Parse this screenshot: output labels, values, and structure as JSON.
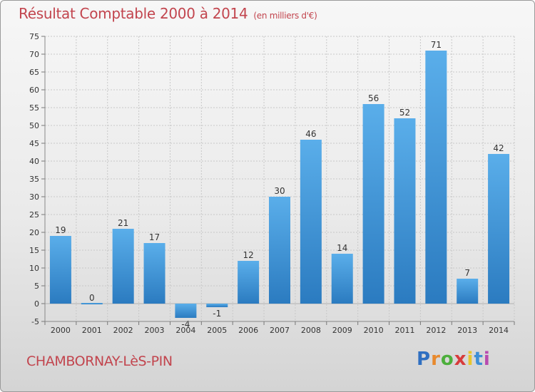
{
  "title": "Résultat Comptable 2000 à 2014",
  "subtitle": "(en milliers d'€)",
  "commune": "CHAMBORNAY-LèS-PIN",
  "logo": {
    "p": "P",
    "r": "r",
    "o": "o",
    "x": "x",
    "i1": "i",
    "t": "t",
    "i2": "i"
  },
  "colors": {
    "title": "#c2454e",
    "bar_top": "#5aaeea",
    "bar_bottom": "#2b7bc0",
    "grid": "#c8c8c8"
  },
  "chart_data": {
    "type": "bar",
    "title": "Résultat Comptable 2000 à 2014",
    "ylabel": "en milliers d'€",
    "xlabel": "",
    "categories": [
      "2000",
      "2001",
      "2002",
      "2003",
      "2004",
      "2005",
      "2006",
      "2007",
      "2008",
      "2009",
      "2010",
      "2011",
      "2012",
      "2013",
      "2014"
    ],
    "values": [
      19,
      0,
      21,
      17,
      -4,
      -1,
      12,
      30,
      46,
      14,
      56,
      52,
      71,
      7,
      42
    ],
    "value_labels": [
      "19",
      "0",
      "21",
      "17",
      "-4",
      "-1",
      "12",
      "30",
      "46",
      "14",
      "56",
      "52",
      "71",
      "7",
      "42"
    ],
    "ylim": [
      -5,
      75
    ],
    "yticks": [
      -5,
      0,
      5,
      10,
      15,
      20,
      25,
      30,
      35,
      40,
      45,
      50,
      55,
      60,
      65,
      70,
      75
    ],
    "grid": true
  }
}
